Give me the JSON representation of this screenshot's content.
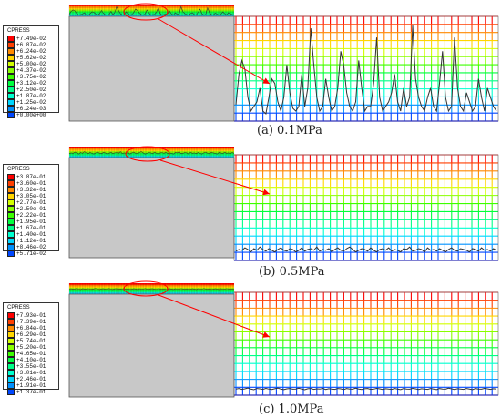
{
  "colors": {
    "contour_scale": [
      "#0000ff",
      "#0047ff",
      "#0090ff",
      "#00d6ff",
      "#00ffd0",
      "#00ff88",
      "#00ff3f",
      "#3cff00",
      "#88ff00",
      "#d2ff00",
      "#ffd600",
      "#ff8a00",
      "#ff3f00",
      "#ff0000"
    ],
    "body_fill": "#c8c8c8",
    "highlight": "#ff0000",
    "profile_line": "#333333"
  },
  "panels": [
    {
      "legend": {
        "title": "CPRESS",
        "values": [
          "+7.49e-02",
          "+6.87e-02",
          "+6.24e-02",
          "+5.62e-02",
          "+5.00e-02",
          "+4.37e-02",
          "+3.75e-02",
          "+3.12e-02",
          "+2.50e-02",
          "+1.87e-02",
          "+1.25e-02",
          "+6.24e-03",
          "+0.00e+00"
        ]
      },
      "caption": "(a)  0.1MPa",
      "profile": [
        0.12,
        0.45,
        0.6,
        0.5,
        0.2,
        0.05,
        0.1,
        0.15,
        0.3,
        0.05,
        0.02,
        0.2,
        0.4,
        0.35,
        0.15,
        0.05,
        0.2,
        0.55,
        0.25,
        0.08,
        0.05,
        0.1,
        0.45,
        0.1,
        0.3,
        0.95,
        0.55,
        0.2,
        0.05,
        0.1,
        0.4,
        0.2,
        0.05,
        0.1,
        0.3,
        0.7,
        0.55,
        0.25,
        0.1,
        0.05,
        0.15,
        0.6,
        0.3,
        0.05,
        0.1,
        0.1,
        0.35,
        0.85,
        0.2,
        0.05,
        0.1,
        0.15,
        0.25,
        0.45,
        0.15,
        0.05,
        0.3,
        0.1,
        0.2,
        0.98,
        0.4,
        0.2,
        0.1,
        0.05,
        0.2,
        0.3,
        0.1,
        0.05,
        0.35,
        0.7,
        0.2,
        0.05,
        0.1,
        0.85,
        0.3,
        0.1,
        0.05,
        0.25,
        0.15,
        0.05,
        0.1,
        0.4,
        0.2,
        0.05,
        0.3,
        0.2,
        0.1,
        0.05
      ]
    },
    {
      "legend": {
        "title": "CPRESS",
        "values": [
          "+3.87e-01",
          "+3.60e-01",
          "+3.32e-01",
          "+3.05e-01",
          "+2.77e-01",
          "+2.50e-01",
          "+2.22e-01",
          "+1.95e-01",
          "+1.67e-01",
          "+1.40e-01",
          "+1.12e-01",
          "+8.46e-02",
          "+5.71e-02"
        ]
      },
      "caption": "(b)  0.5MPa",
      "profile": [
        0.35,
        0.45,
        0.4,
        0.55,
        0.45,
        0.3,
        0.5,
        0.4,
        0.6,
        0.45,
        0.35,
        0.5,
        0.4,
        0.3,
        0.45,
        0.55,
        0.4,
        0.35,
        0.5,
        0.45,
        0.3,
        0.4,
        0.55,
        0.35,
        0.45,
        0.5,
        0.4,
        0.6,
        0.35,
        0.45,
        0.4,
        0.5,
        0.3,
        0.45,
        0.55,
        0.4,
        0.35,
        0.5,
        0.6,
        0.45,
        0.3,
        0.4,
        0.5,
        0.45,
        0.35,
        0.55,
        0.4,
        0.3,
        0.45,
        0.5,
        0.4,
        0.55,
        0.35,
        0.45,
        0.4,
        0.3,
        0.5,
        0.45,
        0.6,
        0.35,
        0.4,
        0.5,
        0.45,
        0.3,
        0.55,
        0.4,
        0.45,
        0.35,
        0.5,
        0.4,
        0.3,
        0.45,
        0.55,
        0.4,
        0.35,
        0.5,
        0.45,
        0.4,
        0.3,
        0.5,
        0.45,
        0.35,
        0.55,
        0.4,
        0.45,
        0.35,
        0.5,
        0.4
      ]
    },
    {
      "legend": {
        "title": "CPRESS",
        "values": [
          "+7.93e-01",
          "+7.39e-01",
          "+6.84e-01",
          "+6.29e-01",
          "+5.74e-01",
          "+5.20e-01",
          "+4.65e-01",
          "+4.10e-01",
          "+3.55e-01",
          "+3.01e-01",
          "+2.46e-01",
          "+1.91e-01",
          "+1.37e-01"
        ]
      },
      "caption": "(c)  1.0MPa",
      "profile": [
        0.5,
        0.55,
        0.48,
        0.52,
        0.58,
        0.5,
        0.45,
        0.55,
        0.52,
        0.48,
        0.56,
        0.5,
        0.47,
        0.53,
        0.58,
        0.5,
        0.46,
        0.52,
        0.55,
        0.49,
        0.51,
        0.57,
        0.5,
        0.45,
        0.53,
        0.55,
        0.48,
        0.52,
        0.5,
        0.56,
        0.47,
        0.53,
        0.5,
        0.48,
        0.55,
        0.52,
        0.46,
        0.54,
        0.5,
        0.49,
        0.57,
        0.51,
        0.47,
        0.53,
        0.55,
        0.48,
        0.5,
        0.56,
        0.52,
        0.47,
        0.53,
        0.5,
        0.48,
        0.55,
        0.51,
        0.46,
        0.54,
        0.5,
        0.49,
        0.56,
        0.52,
        0.47,
        0.53,
        0.5,
        0.48,
        0.55,
        0.51,
        0.46,
        0.54,
        0.5,
        0.49,
        0.57,
        0.52,
        0.47,
        0.53,
        0.5,
        0.48,
        0.55,
        0.51,
        0.46,
        0.54,
        0.5,
        0.49,
        0.56,
        0.52,
        0.48,
        0.53,
        0.5
      ]
    }
  ]
}
